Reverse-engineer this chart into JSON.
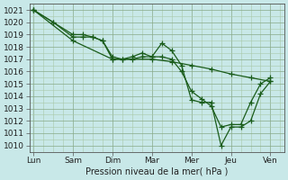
{
  "xlabel": "Pression niveau de la mer( hPa )",
  "background_color": "#c8e8e8",
  "grid_color_minor": "#a8c8a8",
  "grid_color_major": "#88aa88",
  "line_color": "#1a5c1a",
  "x_tick_labels": [
    "Lun",
    "Sam",
    "Dim",
    "Mar",
    "Mer",
    "Jeu",
    "Ven"
  ],
  "x_tick_positions": [
    0,
    1,
    2,
    3,
    4,
    5,
    6
  ],
  "ylim": [
    1009.5,
    1021.5
  ],
  "yticks": [
    1010,
    1011,
    1012,
    1013,
    1014,
    1015,
    1016,
    1017,
    1018,
    1019,
    1020,
    1021
  ],
  "series1_x": [
    0,
    0.5,
    1.0,
    1.25,
    1.5,
    1.75,
    2.0,
    2.25,
    2.5,
    2.75,
    3.0,
    3.25,
    3.5,
    3.75,
    4.0,
    4.25,
    4.5,
    4.75,
    5.0,
    5.25,
    5.5,
    5.75,
    6.0
  ],
  "series1_y": [
    1021.0,
    1020.0,
    1018.8,
    1018.8,
    1018.8,
    1018.5,
    1017.0,
    1017.0,
    1017.0,
    1017.2,
    1017.2,
    1018.3,
    1017.7,
    1016.5,
    1013.7,
    1013.5,
    1013.5,
    1010.0,
    1011.5,
    1011.5,
    1012.0,
    1014.2,
    1015.2
  ],
  "series2_x": [
    0,
    0.5,
    1.0,
    1.25,
    1.5,
    1.75,
    2.0,
    2.25,
    2.5,
    2.75,
    3.0,
    3.25,
    3.5,
    3.75,
    4.0,
    4.25,
    4.5,
    4.75,
    5.0,
    5.25,
    5.5,
    5.75,
    6.0
  ],
  "series2_y": [
    1021.0,
    1020.0,
    1019.0,
    1019.0,
    1018.8,
    1018.5,
    1017.2,
    1017.0,
    1017.2,
    1017.5,
    1017.2,
    1017.2,
    1017.0,
    1016.0,
    1014.4,
    1013.8,
    1013.2,
    1011.5,
    1011.7,
    1011.7,
    1013.5,
    1015.0,
    1015.5
  ],
  "series3_x": [
    0,
    1,
    2,
    3,
    3.5,
    4.0,
    4.5,
    5.0,
    5.5,
    6.0
  ],
  "series3_y": [
    1021.0,
    1018.5,
    1017.0,
    1017.0,
    1016.8,
    1016.5,
    1016.2,
    1015.8,
    1015.5,
    1015.2
  ],
  "marker": "+",
  "markersize": 4,
  "linewidth": 0.9
}
